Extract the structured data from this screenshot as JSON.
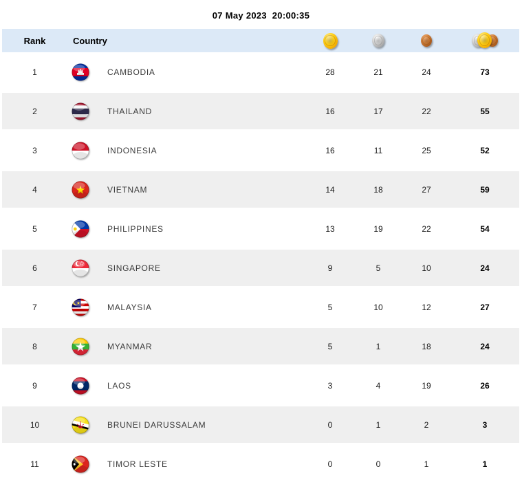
{
  "header": {
    "timestamp": "07 May 2023  20:00:35"
  },
  "table": {
    "columns": {
      "rank": "Rank",
      "country": "Country",
      "gold_icon": "gold-medal-icon",
      "silver_icon": "silver-medal-icon",
      "bronze_icon": "bronze-medal-icon",
      "total_icon": "total-medals-icon"
    },
    "rows": [
      {
        "rank": 1,
        "country": "CAMBODIA",
        "flag": "cambodia",
        "gold": 28,
        "silver": 21,
        "bronze": 24,
        "total": 73
      },
      {
        "rank": 2,
        "country": "THAILAND",
        "flag": "thailand",
        "gold": 16,
        "silver": 17,
        "bronze": 22,
        "total": 55
      },
      {
        "rank": 3,
        "country": "INDONESIA",
        "flag": "indonesia",
        "gold": 16,
        "silver": 11,
        "bronze": 25,
        "total": 52
      },
      {
        "rank": 4,
        "country": "VIETNAM",
        "flag": "vietnam",
        "gold": 14,
        "silver": 18,
        "bronze": 27,
        "total": 59
      },
      {
        "rank": 5,
        "country": "PHILIPPINES",
        "flag": "philippines",
        "gold": 13,
        "silver": 19,
        "bronze": 22,
        "total": 54
      },
      {
        "rank": 6,
        "country": "SINGAPORE",
        "flag": "singapore",
        "gold": 9,
        "silver": 5,
        "bronze": 10,
        "total": 24
      },
      {
        "rank": 7,
        "country": "MALAYSIA",
        "flag": "malaysia",
        "gold": 5,
        "silver": 10,
        "bronze": 12,
        "total": 27
      },
      {
        "rank": 8,
        "country": "MYANMAR",
        "flag": "myanmar",
        "gold": 5,
        "silver": 1,
        "bronze": 18,
        "total": 24
      },
      {
        "rank": 9,
        "country": "LAOS",
        "flag": "laos",
        "gold": 3,
        "silver": 4,
        "bronze": 19,
        "total": 26
      },
      {
        "rank": 10,
        "country": "BRUNEI DARUSSALAM",
        "flag": "brunei",
        "gold": 0,
        "silver": 1,
        "bronze": 2,
        "total": 3
      },
      {
        "rank": 11,
        "country": "TIMOR LESTE",
        "flag": "timor_leste",
        "gold": 0,
        "silver": 0,
        "bronze": 1,
        "total": 1
      }
    ]
  },
  "colors": {
    "header_bg": "#dce9f7",
    "row_bg": "#ffffff",
    "row_alt_bg": "#efefef",
    "gold": "#ffd018",
    "silver": "#c9c9c9",
    "bronze": "#c0702f"
  }
}
